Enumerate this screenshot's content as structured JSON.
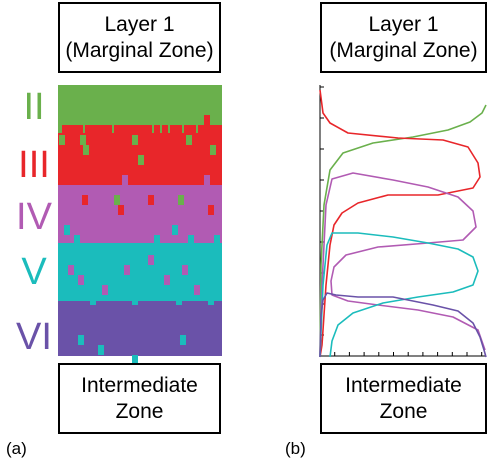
{
  "panel_a": {
    "top_box": {
      "line1": "Layer 1",
      "line2": "(Marginal Zone)"
    },
    "bottom_box": {
      "line1": "Intermediate",
      "line2": "Zone"
    },
    "layer_labels": [
      {
        "text": "II",
        "color": "#6ab04c"
      },
      {
        "text": "III",
        "color": "#e8262a"
      },
      {
        "text": "IV",
        "color": "#b15bb3"
      },
      {
        "text": "V",
        "color": "#1bbcbc"
      },
      {
        "text": "VI",
        "color": "#6a52a8"
      }
    ],
    "panel_label": "(a)"
  },
  "panel_b": {
    "top_box": {
      "line1": "Layer 1",
      "line2": "(Marginal Zone)"
    },
    "bottom_box": {
      "line1": "Intermediate",
      "line2": "Zone"
    },
    "panel_label": "(b)"
  },
  "colors": {
    "II": "#6ab04c",
    "III": "#e8262a",
    "IV": "#b15bb3",
    "V": "#1bbcbc",
    "VI": "#6a52a8"
  }
}
